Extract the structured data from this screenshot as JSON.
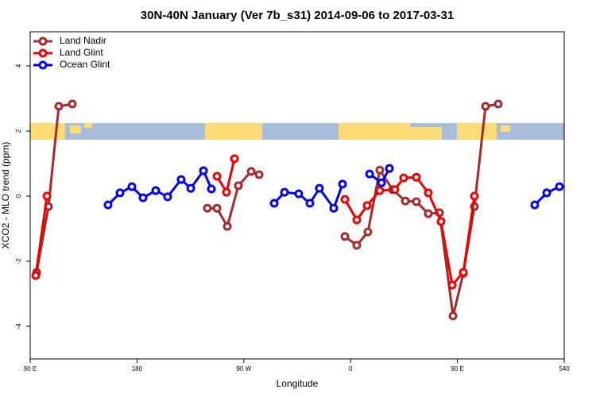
{
  "chart_data": {
    "type": "line",
    "title": "30N-40N January (Ver 7b_s31)   2014-09-06 to 2017-03-31",
    "xlabel": "Longitude",
    "ylabel": "XCO2 - MLO trend (ppm)",
    "xlim": [
      90,
      540
    ],
    "ylim": [
      -5,
      5.05
    ],
    "xticks": [
      {
        "value": 90,
        "label": "90 E"
      },
      180,
      {
        "value": 270,
        "label": "90 W"
      },
      {
        "value": 360,
        "label": "0"
      },
      {
        "value": 450,
        "label": "90 E"
      },
      540
    ],
    "yticks": [
      -4,
      -2,
      0,
      2,
      4
    ],
    "legend": "top-left",
    "series": [
      {
        "name": "Land Nadir",
        "color": "#a52a2a",
        "x": [
          95.4,
          105.4,
          114.1,
          125.5,
          null,
          239.3,
          247.4,
          256.1,
          265.4,
          276.2,
          282.9,
          null,
          355.2,
          365.2,
          374.6,
          384.6,
          395.4,
          406.1,
          415.4,
          425.5,
          434.9,
          446.3,
          455.0,
          464.3,
          473.7,
          484.4
        ],
        "values": [
          -2.34,
          -0.32,
          2.76,
          2.83,
          null,
          -0.37,
          -0.37,
          -0.93,
          0.32,
          0.76,
          0.66,
          null,
          -1.24,
          -1.51,
          -1.1,
          0.8,
          0.2,
          -0.15,
          -0.17,
          -0.54,
          -0.51,
          -3.68,
          -2.37,
          -0.32,
          2.76,
          2.83
        ]
      },
      {
        "name": "Land Glint",
        "color": "#ee0000",
        "x": [
          94.7,
          104.1,
          null,
          247.4,
          255.4,
          262.1,
          null,
          355.2,
          365.2,
          373.9,
          384.6,
          397.3,
          404.7,
          415.4,
          425.5,
          436.2,
          445.6,
          455.0,
          464.3
        ],
        "values": [
          -2.44,
          0.0,
          null,
          0.61,
          0.12,
          1.15,
          null,
          -0.1,
          -0.73,
          -0.29,
          0.17,
          0.2,
          0.56,
          0.58,
          0.1,
          -0.78,
          -2.73,
          -2.34,
          0.0
        ]
      },
      {
        "name": "Ocean Glint",
        "color": "#0000ee",
        "x": [
          155.6,
          165.7,
          175.7,
          185.1,
          195.8,
          205.8,
          217.2,
          225.3,
          236.0,
          242.7,
          null,
          295.6,
          304.3,
          316.3,
          325.7,
          333.7,
          345.8,
          353.2,
          null,
          376.0,
          386.0,
          392.7,
          null,
          515.2,
          525.3,
          536.0
        ],
        "values": [
          -0.27,
          0.1,
          0.29,
          -0.05,
          0.17,
          -0.02,
          0.51,
          0.24,
          0.78,
          0.22,
          null,
          -0.22,
          0.12,
          0.07,
          -0.22,
          0.24,
          -0.37,
          0.37,
          null,
          0.68,
          0.41,
          0.85,
          null,
          -0.27,
          0.1,
          0.29
        ]
      }
    ]
  }
}
